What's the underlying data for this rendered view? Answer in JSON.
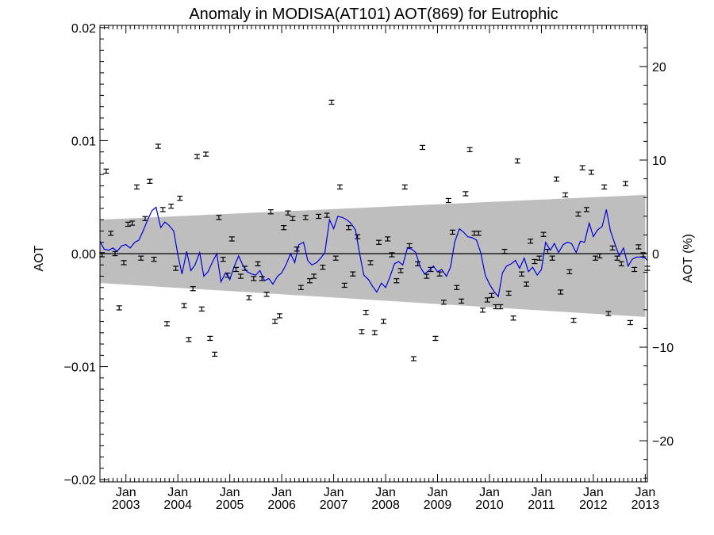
{
  "chart_data": {
    "type": "scatter",
    "title": "Anomaly in MODISA(AT101) AOT(869) for Eutrophic",
    "ylabel": "AOT",
    "y2label": "AOT (%)",
    "xlabel": "",
    "xlim": [
      "2002-07-01",
      "2013-01-15"
    ],
    "ylim": [
      -0.0202,
      0.0202
    ],
    "y2lim": [
      -24.4,
      24.4
    ],
    "yticks": [
      {
        "value": 0.02,
        "label": "0.02"
      },
      {
        "value": 0.01,
        "label": "0.01"
      },
      {
        "value": 0.0,
        "label": "0.00"
      },
      {
        "value": -0.01,
        "label": "−0.01"
      },
      {
        "value": -0.02,
        "label": "−0.02"
      }
    ],
    "y2ticks": [
      {
        "value": 20,
        "label": "20"
      },
      {
        "value": 10,
        "label": "10"
      },
      {
        "value": 0,
        "label": "0"
      },
      {
        "value": -10,
        "label": "−10"
      },
      {
        "value": -20,
        "label": "−20"
      }
    ],
    "xticks": [
      {
        "year": 2003,
        "label_top": "Jan",
        "label_bottom": "2003"
      },
      {
        "year": 2004,
        "label_top": "Jan",
        "label_bottom": "2004"
      },
      {
        "year": 2005,
        "label_top": "Jan",
        "label_bottom": "2005"
      },
      {
        "year": 2006,
        "label_top": "Jan",
        "label_bottom": "2006"
      },
      {
        "year": 2007,
        "label_top": "Jan",
        "label_bottom": "2007"
      },
      {
        "year": 2008,
        "label_top": "Jan",
        "label_bottom": "2008"
      },
      {
        "year": 2009,
        "label_top": "Jan",
        "label_bottom": "2009"
      },
      {
        "year": 2010,
        "label_top": "Jan",
        "label_bottom": "2010"
      },
      {
        "year": 2011,
        "label_top": "Jan",
        "label_bottom": "2011"
      },
      {
        "year": 2012,
        "label_top": "Jan",
        "label_bottom": "2012"
      },
      {
        "year": 2013,
        "label_top": "Jan",
        "label_bottom": "2013"
      }
    ],
    "band": {
      "color": "#bebebe",
      "upper": [
        {
          "x": 2002.5,
          "y": 0.003
        },
        {
          "x": 2013.0,
          "y": 0.0052
        }
      ],
      "lower": [
        {
          "x": 2002.5,
          "y": -0.0026
        },
        {
          "x": 2013.0,
          "y": -0.0056
        }
      ]
    },
    "zero_line": {
      "y": 0.0,
      "color": "#000000"
    },
    "error_bar_half_height": 0.00018,
    "error_bar_color": "#000000",
    "points": [
      {
        "x": 2002.54,
        "y": -0.0001
      },
      {
        "x": 2002.62,
        "y": 0.0073
      },
      {
        "x": 2002.71,
        "y": 0.0018
      },
      {
        "x": 2002.79,
        "y": 0.0
      },
      {
        "x": 2002.87,
        "y": -0.0048
      },
      {
        "x": 2002.96,
        "y": -0.0008
      },
      {
        "x": 2003.04,
        "y": 0.0026
      },
      {
        "x": 2003.12,
        "y": 0.0027
      },
      {
        "x": 2003.21,
        "y": 0.0059
      },
      {
        "x": 2003.29,
        "y": -0.0004
      },
      {
        "x": 2003.37,
        "y": 0.0031
      },
      {
        "x": 2003.46,
        "y": 0.0064
      },
      {
        "x": 2003.54,
        "y": -0.0005
      },
      {
        "x": 2003.62,
        "y": 0.0095
      },
      {
        "x": 2003.71,
        "y": 0.0039
      },
      {
        "x": 2003.79,
        "y": -0.0062
      },
      {
        "x": 2003.87,
        "y": 0.0042
      },
      {
        "x": 2003.96,
        "y": -0.0013
      },
      {
        "x": 2004.04,
        "y": 0.0049
      },
      {
        "x": 2004.12,
        "y": -0.0046
      },
      {
        "x": 2004.21,
        "y": -0.0076
      },
      {
        "x": 2004.29,
        "y": -0.0031
      },
      {
        "x": 2004.37,
        "y": 0.0086
      },
      {
        "x": 2004.46,
        "y": -0.0049
      },
      {
        "x": 2004.54,
        "y": 0.0088
      },
      {
        "x": 2004.62,
        "y": -0.0075
      },
      {
        "x": 2004.71,
        "y": -0.0089
      },
      {
        "x": 2004.79,
        "y": 0.0032
      },
      {
        "x": 2004.87,
        "y": -0.0005
      },
      {
        "x": 2004.96,
        "y": -0.0019
      },
      {
        "x": 2005.04,
        "y": 0.0013
      },
      {
        "x": 2005.12,
        "y": -0.0014
      },
      {
        "x": 2005.21,
        "y": -0.002
      },
      {
        "x": 2005.29,
        "y": -0.0013
      },
      {
        "x": 2005.37,
        "y": -0.0039
      },
      {
        "x": 2005.46,
        "y": -0.0022
      },
      {
        "x": 2005.54,
        "y": -0.0009
      },
      {
        "x": 2005.62,
        "y": -0.0022
      },
      {
        "x": 2005.71,
        "y": -0.0036
      },
      {
        "x": 2005.79,
        "y": 0.0037
      },
      {
        "x": 2005.87,
        "y": -0.006
      },
      {
        "x": 2005.96,
        "y": -0.0055
      },
      {
        "x": 2006.04,
        "y": 0.0023
      },
      {
        "x": 2006.12,
        "y": 0.0036
      },
      {
        "x": 2006.21,
        "y": 0.0031
      },
      {
        "x": 2006.29,
        "y": 0.0004
      },
      {
        "x": 2006.37,
        "y": -0.003
      },
      {
        "x": 2006.46,
        "y": 0.0032
      },
      {
        "x": 2006.54,
        "y": -0.0024
      },
      {
        "x": 2006.62,
        "y": -0.002
      },
      {
        "x": 2006.71,
        "y": 0.0033
      },
      {
        "x": 2006.79,
        "y": -0.0012
      },
      {
        "x": 2006.87,
        "y": 0.0034
      },
      {
        "x": 2006.96,
        "y": 0.0134
      },
      {
        "x": 2007.04,
        "y": -0.0004
      },
      {
        "x": 2007.12,
        "y": 0.0059
      },
      {
        "x": 2007.21,
        "y": -0.0028
      },
      {
        "x": 2007.29,
        "y": 0.0023
      },
      {
        "x": 2007.37,
        "y": -0.0018
      },
      {
        "x": 2007.46,
        "y": 0.0015
      },
      {
        "x": 2007.54,
        "y": -0.0069
      },
      {
        "x": 2007.62,
        "y": -0.0052
      },
      {
        "x": 2007.71,
        "y": -0.0008
      },
      {
        "x": 2007.79,
        "y": -0.007
      },
      {
        "x": 2007.87,
        "y": 0.001
      },
      {
        "x": 2007.96,
        "y": -0.006
      },
      {
        "x": 2008.04,
        "y": 0.0013
      },
      {
        "x": 2008.12,
        "y": -0.0001
      },
      {
        "x": 2008.21,
        "y": -0.0024
      },
      {
        "x": 2008.29,
        "y": -0.0015
      },
      {
        "x": 2008.37,
        "y": 0.0059
      },
      {
        "x": 2008.46,
        "y": 0.0007
      },
      {
        "x": 2008.54,
        "y": -0.0093
      },
      {
        "x": 2008.62,
        "y": -0.0009
      },
      {
        "x": 2008.71,
        "y": 0.0094
      },
      {
        "x": 2008.79,
        "y": -0.002
      },
      {
        "x": 2008.87,
        "y": -0.0014
      },
      {
        "x": 2008.96,
        "y": -0.0075
      },
      {
        "x": 2009.04,
        "y": -0.0018
      },
      {
        "x": 2009.12,
        "y": -0.0043
      },
      {
        "x": 2009.21,
        "y": 0.0047
      },
      {
        "x": 2009.29,
        "y": 0.0019
      },
      {
        "x": 2009.37,
        "y": -0.003
      },
      {
        "x": 2009.46,
        "y": -0.0042
      },
      {
        "x": 2009.54,
        "y": 0.0053
      },
      {
        "x": 2009.62,
        "y": 0.0092
      },
      {
        "x": 2009.71,
        "y": 0.0018
      },
      {
        "x": 2009.79,
        "y": 0.0018
      },
      {
        "x": 2009.87,
        "y": -0.005
      },
      {
        "x": 2009.96,
        "y": -0.0041
      },
      {
        "x": 2010.04,
        "y": -0.0037
      },
      {
        "x": 2010.12,
        "y": -0.0047
      },
      {
        "x": 2010.21,
        "y": -0.0047
      },
      {
        "x": 2010.29,
        "y": 0.0002
      },
      {
        "x": 2010.37,
        "y": -0.0035
      },
      {
        "x": 2010.46,
        "y": -0.0057
      },
      {
        "x": 2010.54,
        "y": 0.0082
      },
      {
        "x": 2010.62,
        "y": -0.0018
      },
      {
        "x": 2010.71,
        "y": -0.0027
      },
      {
        "x": 2010.79,
        "y": 0.0011
      },
      {
        "x": 2010.87,
        "y": -0.0007
      },
      {
        "x": 2010.96,
        "y": -0.0004
      },
      {
        "x": 2011.04,
        "y": 0.0017
      },
      {
        "x": 2011.12,
        "y": 0.0002
      },
      {
        "x": 2011.21,
        "y": -0.0004
      },
      {
        "x": 2011.29,
        "y": 0.0066
      },
      {
        "x": 2011.37,
        "y": -0.0034
      },
      {
        "x": 2011.46,
        "y": 0.0052
      },
      {
        "x": 2011.54,
        "y": -0.0016
      },
      {
        "x": 2011.62,
        "y": -0.0059
      },
      {
        "x": 2011.71,
        "y": 0.0035
      },
      {
        "x": 2011.79,
        "y": 0.0076
      },
      {
        "x": 2011.87,
        "y": 0.0039
      },
      {
        "x": 2011.96,
        "y": 0.0072
      },
      {
        "x": 2012.04,
        "y": -0.0004
      },
      {
        "x": 2012.12,
        "y": -0.0002
      },
      {
        "x": 2012.21,
        "y": 0.0059
      },
      {
        "x": 2012.29,
        "y": -0.0053
      },
      {
        "x": 2012.37,
        "y": 0.0005
      },
      {
        "x": 2012.46,
        "y": -0.0004
      },
      {
        "x": 2012.54,
        "y": -0.0009
      },
      {
        "x": 2012.62,
        "y": 0.0062
      },
      {
        "x": 2012.71,
        "y": -0.0061
      },
      {
        "x": 2012.79,
        "y": -0.0014
      },
      {
        "x": 2012.87,
        "y": 0.0006
      },
      {
        "x": 2012.96,
        "y": -0.0001
      },
      {
        "x": 2013.04,
        "y": -0.0013
      }
    ],
    "line": {
      "color": "#0000dd",
      "x": [
        2002.5,
        2002.58,
        2002.67,
        2002.75,
        2002.83,
        2002.92,
        2003.0,
        2003.08,
        2003.17,
        2003.25,
        2003.33,
        2003.42,
        2003.5,
        2003.58,
        2003.67,
        2003.75,
        2003.83,
        2003.92,
        2004.0,
        2004.08,
        2004.17,
        2004.25,
        2004.33,
        2004.42,
        2004.5,
        2004.58,
        2004.67,
        2004.75,
        2004.83,
        2004.92,
        2005.0,
        2005.08,
        2005.17,
        2005.25,
        2005.33,
        2005.42,
        2005.5,
        2005.58,
        2005.67,
        2005.75,
        2005.83,
        2005.92,
        2006.0,
        2006.08,
        2006.17,
        2006.25,
        2006.33,
        2006.42,
        2006.5,
        2006.58,
        2006.67,
        2006.75,
        2006.83,
        2006.92,
        2007.0,
        2007.08,
        2007.17,
        2007.25,
        2007.33,
        2007.42,
        2007.5,
        2007.58,
        2007.67,
        2007.75,
        2007.83,
        2007.92,
        2008.0,
        2008.08,
        2008.17,
        2008.25,
        2008.33,
        2008.42,
        2008.5,
        2008.58,
        2008.67,
        2008.75,
        2008.83,
        2008.92,
        2009.0,
        2009.08,
        2009.17,
        2009.25,
        2009.33,
        2009.42,
        2009.5,
        2009.58,
        2009.67,
        2009.75,
        2009.83,
        2009.92,
        2010.0,
        2010.08,
        2010.17,
        2010.25,
        2010.33,
        2010.42,
        2010.5,
        2010.58,
        2010.67,
        2010.75,
        2010.83,
        2010.92,
        2011.0,
        2011.08,
        2011.17,
        2011.25,
        2011.33,
        2011.42,
        2011.5,
        2011.58,
        2011.67,
        2011.75,
        2011.83,
        2011.92,
        2012.0,
        2012.08,
        2012.17,
        2012.25,
        2012.33,
        2012.42,
        2012.5,
        2012.58,
        2012.67,
        2012.75,
        2012.83,
        2012.92,
        2013.0,
        2013.08
      ],
      "y": [
        0.0011,
        0.0004,
        0.0003,
        0.0005,
        0.0002,
        0.0007,
        0.0008,
        0.0005,
        0.001,
        0.0012,
        0.002,
        0.003,
        0.0038,
        0.0041,
        0.0023,
        0.0028,
        0.0025,
        0.002,
        -0.0001,
        -0.0018,
        0.0002,
        -0.0015,
        -0.001,
        0.0001,
        -0.002,
        -0.0016,
        -0.0007,
        0.0,
        -0.0025,
        -0.0017,
        -0.0023,
        -0.0012,
        -0.0002,
        -0.001,
        -0.0016,
        -0.0018,
        -0.0019,
        -0.0015,
        -0.0024,
        -0.0022,
        -0.0027,
        -0.002,
        -0.0017,
        -0.001,
        0.0,
        -0.0008,
        0.0008,
        0.001,
        -0.0006,
        -0.001,
        -0.0008,
        -0.0004,
        0.0001,
        0.003,
        0.0022,
        0.0033,
        0.0032,
        0.003,
        0.0027,
        0.0021,
        0.0,
        -0.0019,
        -0.0023,
        -0.0029,
        -0.0034,
        -0.0026,
        -0.003,
        -0.0021,
        -0.0009,
        -0.0007,
        -0.001,
        0.0005,
        0.0004,
        0.0001,
        -0.0012,
        -0.0018,
        -0.0015,
        -0.0011,
        -0.0016,
        -0.0014,
        -0.002,
        -0.0012,
        0.001,
        0.0022,
        0.0019,
        0.0015,
        0.0014,
        0.0012,
        0.0001,
        -0.0019,
        -0.0027,
        -0.0033,
        -0.0038,
        -0.0017,
        -0.0011,
        -0.0009,
        -0.0006,
        -0.0013,
        -0.0004,
        -0.0016,
        -0.0012,
        -0.0019,
        -0.0014,
        0.001,
        0.0003,
        0.0009,
        0.0001,
        0.0008,
        0.001,
        0.0009,
        0.0001,
        0.0011,
        0.001,
        0.0027,
        0.0015,
        0.0021,
        0.0024,
        0.0039,
        0.002,
        0.0008,
        -0.0002,
        0.0005,
        -0.0011,
        -0.0005,
        -0.0003,
        -0.0003,
        -0.0004,
        -0.0008
      ]
    }
  }
}
